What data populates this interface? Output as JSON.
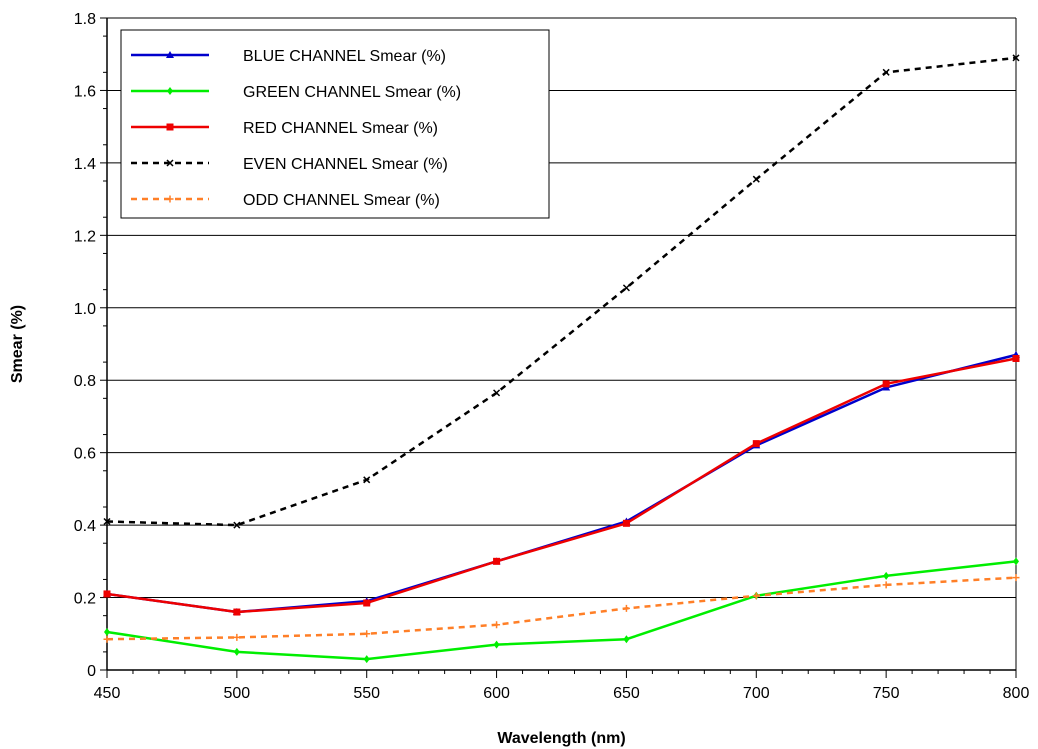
{
  "chart_data": {
    "type": "line",
    "xlabel": "Wavelength (nm)",
    "ylabel": "Smear (%)",
    "xlim": [
      450,
      800
    ],
    "ylim": [
      0,
      1.8
    ],
    "x_ticks": [
      "450",
      "500",
      "550",
      "600",
      "650",
      "700",
      "750",
      "800"
    ],
    "y_ticks": [
      "0",
      "0.2",
      "0.4",
      "0.6",
      "0.8",
      "1.0",
      "1.2",
      "1.4",
      "1.6",
      "1.8"
    ],
    "grid": "horizontal",
    "legend_position": "top-left",
    "x": [
      450,
      500,
      550,
      600,
      650,
      700,
      750,
      800
    ],
    "series": [
      {
        "name": "BLUE CHANNEL Smear (%)",
        "color": "#0000cc",
        "line": "solid",
        "marker": "triangle",
        "values": [
          0.21,
          0.16,
          0.19,
          0.3,
          0.41,
          0.62,
          0.78,
          0.87
        ]
      },
      {
        "name": "GREEN CHANNEL Smear (%)",
        "color": "#00ee00",
        "line": "solid",
        "marker": "diamond",
        "values": [
          0.105,
          0.05,
          0.03,
          0.07,
          0.085,
          0.205,
          0.26,
          0.3
        ]
      },
      {
        "name": "RED CHANNEL Smear (%)",
        "color": "#ee0000",
        "line": "solid",
        "marker": "square",
        "values": [
          0.21,
          0.16,
          0.185,
          0.3,
          0.405,
          0.625,
          0.79,
          0.86
        ]
      },
      {
        "name": "EVEN CHANNEL Smear (%)",
        "color": "#000000",
        "line": "dashed",
        "marker": "x",
        "values": [
          0.41,
          0.4,
          0.525,
          0.765,
          1.055,
          1.355,
          1.65,
          1.69
        ]
      },
      {
        "name": "ODD CHANNEL Smear (%)",
        "color": "#ff7f27",
        "line": "dashed",
        "marker": "plus",
        "values": [
          0.085,
          0.09,
          0.1,
          0.125,
          0.17,
          0.205,
          0.235,
          0.255
        ]
      }
    ]
  }
}
